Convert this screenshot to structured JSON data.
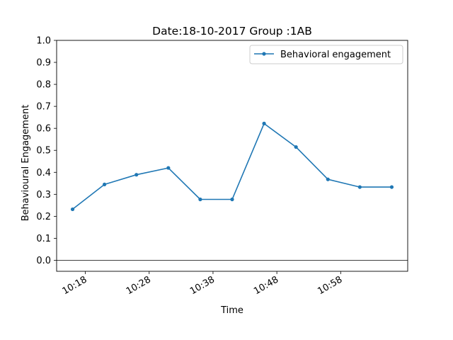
{
  "chart_data": {
    "type": "line",
    "title": "Date:18-10-2017 Group :1AB",
    "xlabel": "Time",
    "ylabel": "Behavioural Engagement",
    "ylim": [
      0.0,
      1.0
    ],
    "y_ticks": [
      "0.0",
      "0.1",
      "0.2",
      "0.3",
      "0.4",
      "0.5",
      "0.6",
      "0.7",
      "0.8",
      "0.9",
      "1.0"
    ],
    "x_ticks": [
      "10:18",
      "10:28",
      "10:38",
      "10:48",
      "10:58"
    ],
    "x_tick_minutes": [
      18,
      28,
      38,
      48,
      58
    ],
    "xlim_minutes": [
      13.5,
      68.5
    ],
    "legend_position": "upper right",
    "horizontal_reference_line": 0.0,
    "series": [
      {
        "name": "Behavioral engagement",
        "color": "#1f77b4",
        "marker": "dot",
        "x_minutes": [
          16,
          21,
          26,
          31,
          36,
          41,
          46,
          51,
          56,
          61,
          66
        ],
        "values": [
          0.232,
          0.345,
          0.389,
          0.42,
          0.277,
          0.277,
          0.622,
          0.515,
          0.368,
          0.333,
          0.333
        ]
      }
    ]
  }
}
